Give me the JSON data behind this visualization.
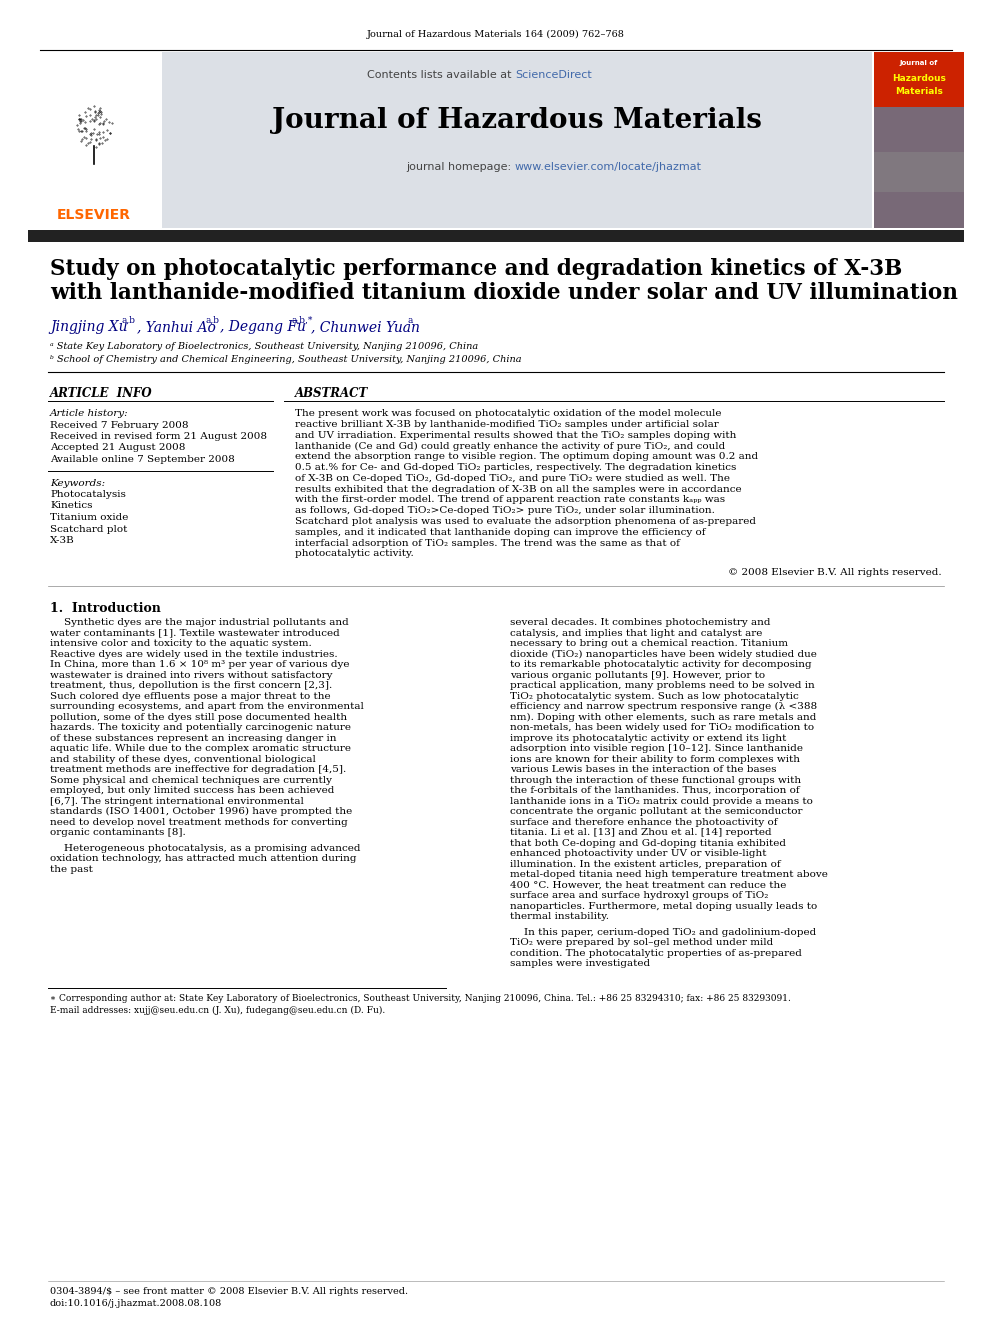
{
  "journal_ref": "Journal of Hazardous Materials 164 (2009) 762–768",
  "contents_line_pre": "Contents lists available at ",
  "contents_sciencedirect": "ScienceDirect",
  "sciencedirect_color": "#4169aa",
  "journal_title": "Journal of Hazardous Materials",
  "homepage_prefix": "journal homepage: ",
  "homepage_url": "www.elsevier.com/locate/jhazmat",
  "homepage_color": "#4169aa",
  "elsevier_color": "#ff6600",
  "dark_bar_color": "#222222",
  "paper_title_line1": "Study on photocatalytic performance and degradation kinetics of X-3B",
  "paper_title_line2": "with lanthanide-modified titanium dioxide under solar and UV illumination",
  "author_line": "Jingjing Xu",
  "author_sup1": "a,b",
  "author2": ", Yanhui Ao",
  "author_sup2": "a,b",
  "author3": ", Degang Fu",
  "author_sup3": "a,b,*",
  "author4": ", Chunwei Yuan",
  "author_sup4": "a",
  "affil_a": "ᵃ State Key Laboratory of Bioelectronics, Southeast University, Nanjing 210096, China",
  "affil_b": "ᵇ School of Chemistry and Chemical Engineering, Southeast University, Nanjing 210096, China",
  "article_info_title": "ARTICLE  INFO",
  "abstract_title": "ABSTRACT",
  "article_history_label": "Article history:",
  "received": "Received 7 February 2008",
  "received_revised": "Received in revised form 21 August 2008",
  "accepted": "Accepted 21 August 2008",
  "available": "Available online 7 September 2008",
  "keywords_label": "Keywords:",
  "keywords": [
    "Photocatalysis",
    "Kinetics",
    "Titanium oxide",
    "Scatchard plot",
    "X-3B"
  ],
  "abstract_text": "The present work was focused on photocatalytic oxidation of the model molecule reactive brilliant X-3B by lanthanide-modified TiO₂ samples under artificial solar and UV irradiation. Experimental results showed that the TiO₂ samples doping with lanthanide (Ce and Gd) could greatly enhance the activity of pure TiO₂, and could extend the absorption range to visible region. The optimum doping amount was 0.2 and 0.5 at.% for Ce- and Gd-doped TiO₂ particles, respectively. The degradation kinetics of X-3B on Ce-doped TiO₂, Gd-doped TiO₂, and pure TiO₂ were studied as well. The results exhibited that the degradation of X-3B on all the samples were in accordance with the first-order model. The trend of apparent reaction rate constants kₐₚₚ was as follows, Gd-doped TiO₂>Ce-doped TiO₂> pure TiO₂, under solar illumination. Scatchard plot analysis was used to evaluate the adsorption phenomena of as-prepared samples, and it indicated that lanthanide doping can improve the efficiency of interfacial adsorption of TiO₂ samples. The trend was the same as that of photocatalytic activity.",
  "copyright": "© 2008 Elsevier B.V. All rights reserved.",
  "intro_title": "1.  Introduction",
  "intro_col1_p1": "Synthetic dyes are the major industrial pollutants and water contaminants [1]. Textile wastewater introduced intensive color and toxicity to the aquatic system. Reactive dyes are widely used in the textile industries. In China, more than 1.6 × 10⁸ m³ per year of various dye wastewater is drained into rivers without satisfactory treatment, thus, depollution is the first concern [2,3]. Such colored dye effluents pose a major threat to the surrounding ecosystems, and apart from the environmental pollution, some of the dyes still pose documented health hazards. The toxicity and potentially carcinogenic nature of these substances represent an increasing danger in aquatic life. While due to the complex aromatic structure and stability of these dyes, conventional biological treatment methods are ineffective for degradation [4,5]. Some physical and chemical techniques are currently employed, but only limited success has been achieved [6,7]. The stringent international environmental standards (ISO 14001, October 1996) have prompted the need to develop novel treatment methods for converting organic contaminants [8].",
  "intro_col1_p2": "Heterogeneous photocatalysis, as a promising advanced oxidation technology, has attracted much attention during the past",
  "intro_col2_p1": "several decades. It combines photochemistry and catalysis, and implies that light and catalyst are necessary to bring out a chemical reaction. Titanium dioxide (TiO₂) nanoparticles have been widely studied due to its remarkable photocatalytic activity for decomposing various organic pollutants [9]. However, prior to practical application, many problems need to be solved in TiO₂ photocatalytic system. Such as low photocatalytic efficiency and narrow spectrum responsive range (λ <388 nm). Doping with other elements, such as rare metals and non-metals, has been widely used for TiO₂ modification to improve its photocatalytic activity or extend its light adsorption into visible region [10–12]. Since lanthanide ions are known for their ability to form complexes with various Lewis bases in the interaction of the bases through the interaction of these functional groups with the f-orbitals of the lanthanides. Thus, incorporation of lanthanide ions in a TiO₂ matrix could provide a means to concentrate the organic pollutant at the semiconductor surface and therefore enhance the photoactivity of titania. Li et al. [13] and Zhou et al. [14] reported that both Ce-doping and Gd-doping titania exhibited enhanced photoactivity under UV or visible-light illumination. In the existent articles, preparation of metal-doped titania need high temperature treatment above 400 °C. However, the heat treatment can reduce the surface area and surface hydroxyl groups of TiO₂ nanoparticles. Furthermore, metal doping usually leads to thermal instability.",
  "intro_col2_p2": "In this paper, cerium-doped TiO₂ and gadolinium-doped TiO₂ were prepared by sol–gel method under mild condition. The photocatalytic properties of as-prepared samples were investigated",
  "footnote_star": "∗ Corresponding author at: State Key Laboratory of Bioelectronics, Southeast University, Nanjing 210096, China. Tel.: +86 25 83294310; fax: +86 25 83293091.",
  "footnote_email": "E-mail addresses: xujj@seu.edu.cn (J. Xu), fudegang@seu.edu.cn (D. Fu).",
  "bottom_line1": "0304-3894/$ – see front matter © 2008 Elsevier B.V. All rights reserved.",
  "bottom_line2": "doi:10.1016/j.jhazmat.2008.08.108",
  "bg_color": "#ffffff",
  "gray_header_bg": "#dce0e6",
  "cover_bg": "#cc2200",
  "cover_text1": "Journal of",
  "cover_text2": "Hazardous",
  "cover_text3": "Materials"
}
